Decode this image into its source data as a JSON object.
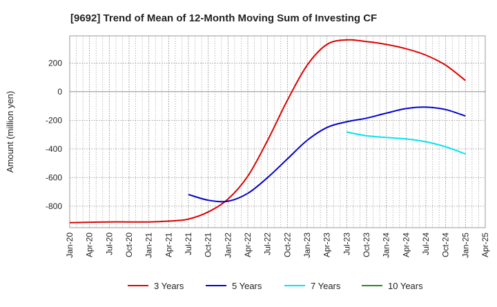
{
  "chart_data": {
    "type": "line",
    "title": "[9692]  Trend of Mean of 12-Month Moving Sum of Investing CF",
    "xlabel": "",
    "ylabel": "Amount (million yen)",
    "ylim": [
      -950,
      390
    ],
    "yticks": [
      200,
      0,
      -200,
      -400,
      -600,
      -800
    ],
    "grid": true,
    "legend_position": "bottom",
    "x_tick_labels": [
      "Jan-20",
      "Apr-20",
      "Jul-20",
      "Oct-20",
      "Jan-21",
      "Apr-21",
      "Jul-21",
      "Oct-21",
      "Jan-22",
      "Apr-22",
      "Jul-22",
      "Oct-22",
      "Jan-23",
      "Apr-23",
      "Jul-23",
      "Oct-23",
      "Jan-24",
      "Apr-24",
      "Jul-24",
      "Oct-24",
      "Jan-25",
      "Apr-25"
    ],
    "series": [
      {
        "name": "3 Years",
        "color": "#dd0000",
        "x": [
          "2020-01",
          "2020-04",
          "2020-07",
          "2020-10",
          "2021-01",
          "2021-04",
          "2021-07",
          "2021-10",
          "2022-01",
          "2022-04",
          "2022-07",
          "2022-10",
          "2023-01",
          "2023-04",
          "2023-07",
          "2023-10",
          "2024-01",
          "2024-04",
          "2024-07",
          "2024-10",
          "2025-01"
        ],
        "values": [
          -915,
          -912,
          -910,
          -910,
          -910,
          -904,
          -890,
          -840,
          -750,
          -590,
          -340,
          -60,
          185,
          330,
          362,
          350,
          330,
          300,
          255,
          185,
          78
        ]
      },
      {
        "name": "5 Years",
        "color": "#0000cc",
        "x": [
          "2021-07",
          "2021-10",
          "2022-01",
          "2022-04",
          "2022-07",
          "2022-10",
          "2023-01",
          "2023-04",
          "2023-07",
          "2023-10",
          "2024-01",
          "2024-04",
          "2024-07",
          "2024-10",
          "2025-01"
        ],
        "values": [
          -718,
          -758,
          -765,
          -710,
          -600,
          -470,
          -340,
          -250,
          -210,
          -185,
          -150,
          -118,
          -108,
          -125,
          -170
        ]
      },
      {
        "name": "7 Years",
        "color": "#00e5ee",
        "x": [
          "2023-07",
          "2023-10",
          "2024-01",
          "2024-04",
          "2024-07",
          "2024-10",
          "2025-01"
        ],
        "values": [
          -282,
          -308,
          -320,
          -330,
          -350,
          -385,
          -435
        ]
      },
      {
        "name": "10 Years",
        "color": "#228b22",
        "x": [],
        "values": []
      }
    ]
  }
}
